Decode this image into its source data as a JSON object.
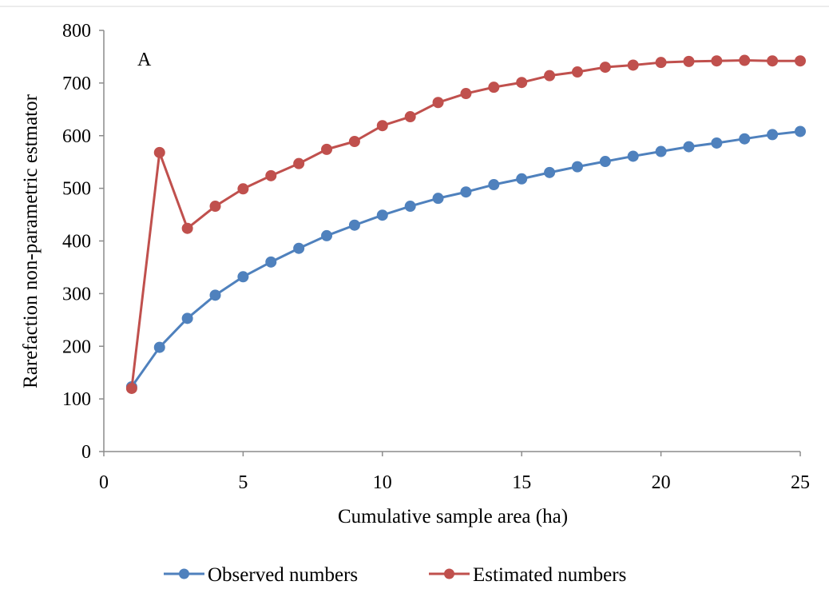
{
  "chart_data": {
    "type": "line",
    "panel_label": "A",
    "xlabel": "Cumulative sample area (ha)",
    "ylabel": "Rarefaction non-parametric estmator",
    "xlim": [
      0,
      25
    ],
    "ylim": [
      0,
      800
    ],
    "xticks": [
      0,
      5,
      10,
      15,
      20,
      25
    ],
    "yticks": [
      0,
      100,
      200,
      300,
      400,
      500,
      600,
      700,
      800
    ],
    "grid": false,
    "legend_position": "bottom",
    "x": [
      1,
      2,
      3,
      4,
      5,
      6,
      7,
      8,
      9,
      10,
      11,
      12,
      13,
      14,
      15,
      16,
      17,
      18,
      19,
      20,
      21,
      22,
      23,
      24,
      25
    ],
    "series": [
      {
        "name": "Observed numbers",
        "color": "#4F81BD",
        "values": [
          123,
          198,
          253,
          297,
          332,
          360,
          386,
          410,
          430,
          449,
          466,
          481,
          493,
          507,
          518,
          530,
          541,
          551,
          561,
          570,
          579,
          586,
          594,
          602,
          608
        ]
      },
      {
        "name": "Estimated numbers",
        "color": "#C0504D",
        "values": [
          120,
          568,
          424,
          466,
          499,
          524,
          547,
          574,
          589,
          619,
          636,
          663,
          680,
          692,
          701,
          714,
          721,
          730,
          734,
          739,
          741,
          742,
          743,
          742,
          742
        ]
      }
    ]
  }
}
